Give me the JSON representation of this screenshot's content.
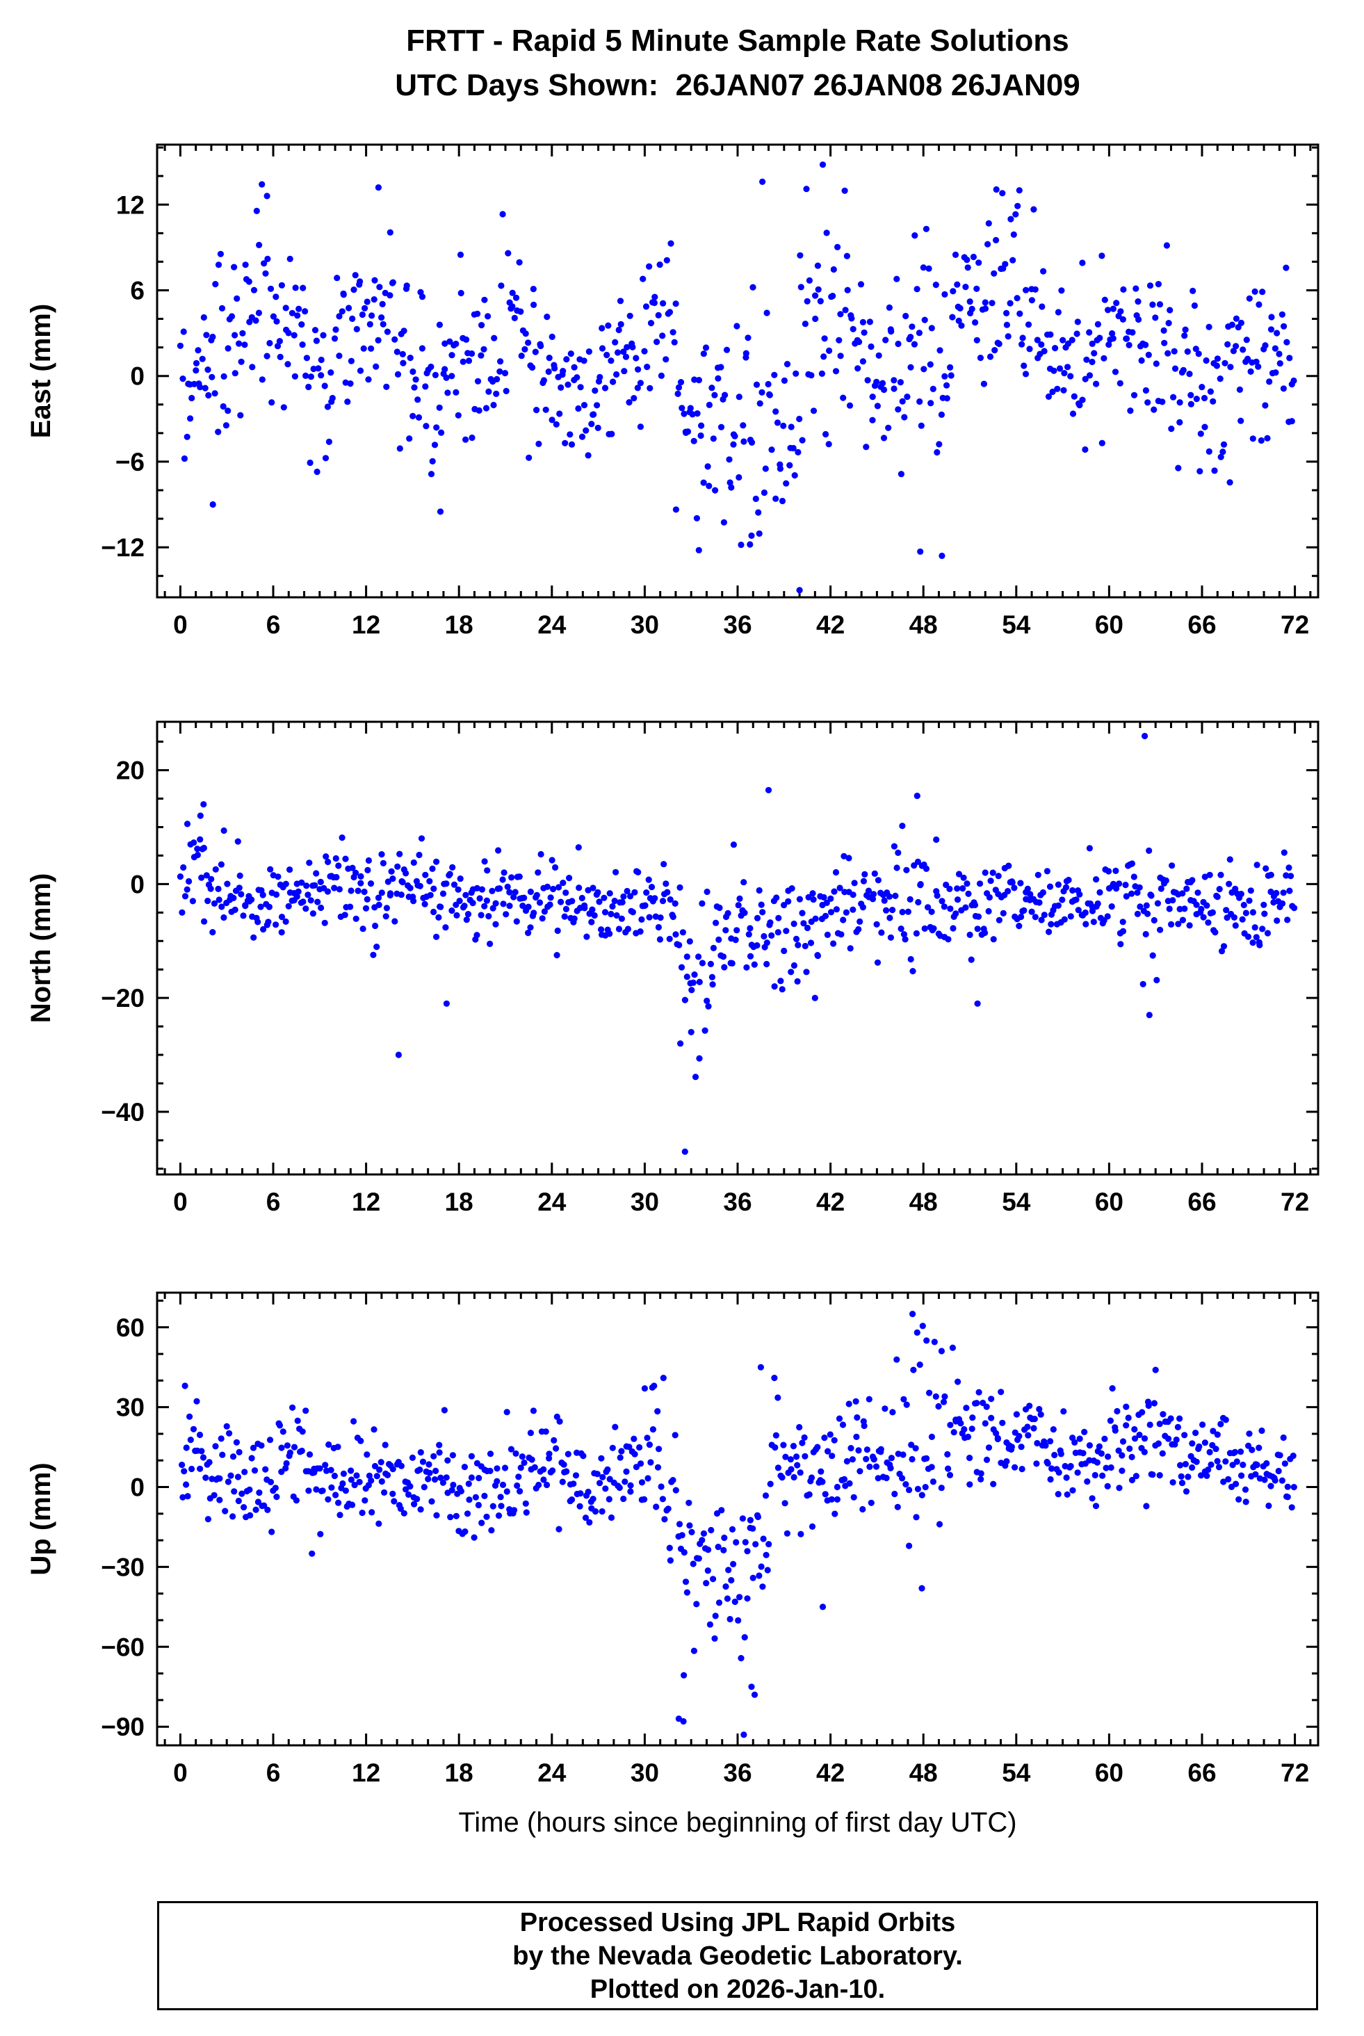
{
  "page": {
    "title_line1": "FRTT - Rapid 5 Minute Sample Rate Solutions",
    "title_line2": "UTC Days Shown:  26JAN07 26JAN08 26JAN09",
    "footer": {
      "line1": "Processed Using JPL Rapid Orbits",
      "line2": "by the Nevada Geodetic Laboratory.",
      "line3": "Plotted on 2026-Jan-10."
    }
  },
  "chart_data": {
    "type": "scatter",
    "title": "FRTT - Rapid 5 Minute Sample Rate Solutions",
    "subtitle": "UTC Days Shown:  26JAN07 26JAN08 26JAN09",
    "xlabel": "Time (hours since beginning of first day UTC)",
    "point_color": "#0000ff",
    "grid": false,
    "legend": "none",
    "x": {
      "lim": [
        -1.5,
        73.5
      ],
      "tick_values": [
        0,
        6,
        12,
        18,
        24,
        30,
        36,
        42,
        48,
        54,
        60,
        66,
        72
      ],
      "tick_labels": [
        "0",
        "6",
        "12",
        "18",
        "24",
        "30",
        "36",
        "42",
        "48",
        "54",
        "60",
        "66",
        "72"
      ],
      "minor_step": 1
    },
    "panels": [
      {
        "name": "east",
        "ylabel": "East (mm)",
        "ylim": [
          -15.5,
          16.2
        ],
        "tick_values": [
          -12,
          -6,
          0,
          6,
          12
        ],
        "tick_labels": [
          "−12",
          "−6",
          "0",
          "6",
          "12"
        ],
        "minor_step": 2,
        "seed": 101,
        "segments": [
          [
            0,
            2,
            22,
            0.5,
            2.8
          ],
          [
            2,
            4,
            22,
            1.5,
            3.5
          ],
          [
            4,
            6,
            22,
            5.5,
            3.2
          ],
          [
            6,
            8,
            22,
            4.0,
            2.8
          ],
          [
            8,
            10,
            22,
            1.0,
            3.2
          ],
          [
            10,
            12,
            22,
            3.0,
            2.8
          ],
          [
            12,
            14,
            22,
            3.5,
            3.0
          ],
          [
            14,
            16,
            22,
            0.5,
            3.0
          ],
          [
            16,
            18,
            22,
            -1.0,
            3.5
          ],
          [
            18,
            20,
            22,
            1.5,
            3.0
          ],
          [
            20,
            22,
            22,
            3.0,
            3.5
          ],
          [
            22,
            24,
            22,
            1.0,
            3.0
          ],
          [
            24,
            26,
            22,
            -0.5,
            2.6
          ],
          [
            26,
            28,
            22,
            -1.0,
            2.6
          ],
          [
            28,
            30,
            22,
            1.5,
            3.0
          ],
          [
            30,
            32,
            22,
            4.0,
            3.0
          ],
          [
            32,
            34,
            22,
            -1.5,
            3.5
          ],
          [
            34,
            36,
            22,
            -3.0,
            3.5
          ],
          [
            36,
            38,
            22,
            -3.5,
            3.8
          ],
          [
            38,
            40,
            22,
            -5.0,
            3.0
          ],
          [
            40,
            42,
            22,
            3.0,
            4.5
          ],
          [
            42,
            44,
            22,
            4.0,
            3.2
          ],
          [
            44,
            46,
            22,
            2.0,
            3.5
          ],
          [
            46,
            48,
            22,
            3.0,
            4.0
          ],
          [
            48,
            50,
            22,
            2.0,
            4.2
          ],
          [
            50,
            52,
            22,
            4.5,
            3.0
          ],
          [
            52,
            54,
            22,
            6.5,
            3.2
          ],
          [
            54,
            56,
            22,
            4.0,
            3.0
          ],
          [
            56,
            58,
            22,
            0.5,
            2.8
          ],
          [
            58,
            60,
            22,
            2.0,
            3.0
          ],
          [
            60,
            62,
            22,
            3.0,
            3.0
          ],
          [
            62,
            64,
            22,
            2.5,
            3.2
          ],
          [
            64,
            66,
            22,
            0.5,
            3.0
          ],
          [
            66,
            68,
            22,
            -0.5,
            3.0
          ],
          [
            68,
            70,
            22,
            1.5,
            3.0
          ],
          [
            70,
            72,
            22,
            1.5,
            2.8
          ]
        ],
        "outliers": [
          [
            40.0,
            -15.0
          ],
          [
            41.5,
            14.8
          ],
          [
            33.5,
            -12.2
          ],
          [
            36.8,
            -11.8
          ],
          [
            47.8,
            -12.3
          ],
          [
            49.2,
            -12.6
          ],
          [
            12.8,
            13.2
          ],
          [
            5.6,
            12.6
          ],
          [
            37.6,
            13.6
          ],
          [
            54.2,
            13.0
          ],
          [
            53.1,
            12.8
          ],
          [
            16.8,
            -9.5
          ],
          [
            2.1,
            -9.0
          ]
        ]
      },
      {
        "name": "north",
        "ylabel": "North (mm)",
        "ylim": [
          -51.0,
          28.5
        ],
        "tick_values": [
          -40,
          -20,
          0,
          20
        ],
        "tick_labels": [
          "−40",
          "−20",
          "0",
          "20"
        ],
        "minor_step": 5,
        "seed": 202,
        "segments": [
          [
            0,
            2,
            22,
            1.0,
            4.5
          ],
          [
            2,
            4,
            22,
            -2.0,
            3.5
          ],
          [
            4,
            6,
            22,
            -3.0,
            2.8
          ],
          [
            6,
            8,
            22,
            -2.5,
            3.0
          ],
          [
            8,
            10,
            22,
            -1.0,
            3.5
          ],
          [
            10,
            12,
            22,
            0.5,
            4.0
          ],
          [
            12,
            14,
            22,
            -2.0,
            4.5
          ],
          [
            14,
            16,
            22,
            1.0,
            3.5
          ],
          [
            16,
            18,
            22,
            -2.5,
            3.8
          ],
          [
            18,
            20,
            22,
            -2.5,
            3.0
          ],
          [
            20,
            22,
            22,
            -2.0,
            3.0
          ],
          [
            22,
            24,
            22,
            -3.0,
            3.0
          ],
          [
            24,
            26,
            22,
            -2.5,
            3.2
          ],
          [
            26,
            28,
            22,
            -4.0,
            3.0
          ],
          [
            28,
            30,
            22,
            -3.5,
            3.0
          ],
          [
            30,
            32,
            22,
            -3.0,
            3.5
          ],
          [
            32,
            34,
            22,
            -13.0,
            7.5
          ],
          [
            34,
            36,
            22,
            -9.0,
            6.0
          ],
          [
            36,
            38,
            22,
            -6.5,
            5.0
          ],
          [
            38,
            40,
            22,
            -7.0,
            5.0
          ],
          [
            40,
            42,
            22,
            -6.0,
            4.5
          ],
          [
            42,
            44,
            22,
            -4.0,
            4.0
          ],
          [
            44,
            46,
            22,
            -3.0,
            4.0
          ],
          [
            46,
            48,
            22,
            -2.0,
            5.0
          ],
          [
            48,
            50,
            22,
            -3.5,
            5.0
          ],
          [
            50,
            52,
            22,
            -3.0,
            4.5
          ],
          [
            52,
            54,
            22,
            -2.0,
            4.0
          ],
          [
            54,
            56,
            22,
            -3.0,
            3.5
          ],
          [
            56,
            58,
            22,
            -2.0,
            4.0
          ],
          [
            58,
            60,
            22,
            -3.0,
            3.5
          ],
          [
            60,
            62,
            22,
            -2.5,
            4.0
          ],
          [
            62,
            64,
            22,
            -3.0,
            5.5
          ],
          [
            64,
            66,
            22,
            -3.0,
            3.0
          ],
          [
            66,
            68,
            22,
            -4.0,
            3.5
          ],
          [
            68,
            70,
            22,
            -6.0,
            4.0
          ],
          [
            70,
            72,
            22,
            -2.0,
            4.0
          ]
        ],
        "outliers": [
          [
            14.1,
            -30.0
          ],
          [
            32.6,
            -47.0
          ],
          [
            32.3,
            -28.0
          ],
          [
            33.0,
            -26.0
          ],
          [
            38.0,
            16.5
          ],
          [
            47.6,
            15.5
          ],
          [
            62.3,
            26.0
          ],
          [
            62.6,
            -23.0
          ],
          [
            1.5,
            14.0
          ],
          [
            1.3,
            12.0
          ],
          [
            17.2,
            -21.0
          ],
          [
            51.5,
            -21.0
          ],
          [
            41.0,
            -20.0
          ]
        ]
      },
      {
        "name": "up",
        "ylabel": "Up (mm)",
        "ylim": [
          -97.0,
          73.0
        ],
        "tick_values": [
          -90,
          -60,
          -30,
          0,
          30,
          60
        ],
        "tick_labels": [
          "−90",
          "−60",
          "−30",
          "0",
          "30",
          "60"
        ],
        "minor_step": 10,
        "seed": 303,
        "segments": [
          [
            0,
            2,
            22,
            8,
            10
          ],
          [
            2,
            4,
            22,
            2,
            9
          ],
          [
            4,
            6,
            22,
            5,
            9
          ],
          [
            6,
            8,
            22,
            8,
            9
          ],
          [
            8,
            10,
            22,
            4,
            10
          ],
          [
            10,
            12,
            22,
            2,
            9
          ],
          [
            12,
            14,
            22,
            4,
            9
          ],
          [
            14,
            16,
            22,
            1,
            9
          ],
          [
            16,
            18,
            22,
            3,
            10
          ],
          [
            18,
            20,
            22,
            -2,
            9
          ],
          [
            20,
            22,
            22,
            2,
            9
          ],
          [
            22,
            24,
            22,
            7,
            9
          ],
          [
            24,
            26,
            22,
            8,
            9
          ],
          [
            26,
            28,
            22,
            3,
            9
          ],
          [
            28,
            30,
            22,
            8,
            9
          ],
          [
            30,
            32,
            22,
            8,
            14
          ],
          [
            32,
            34,
            22,
            -28,
            15
          ],
          [
            34,
            36,
            22,
            -30,
            15
          ],
          [
            36,
            38,
            22,
            -30,
            22
          ],
          [
            38,
            40,
            22,
            8,
            14
          ],
          [
            40,
            42,
            22,
            5,
            13
          ],
          [
            42,
            44,
            22,
            14,
            10
          ],
          [
            44,
            46,
            22,
            10,
            9
          ],
          [
            46,
            48,
            22,
            14,
            20
          ],
          [
            48,
            50,
            22,
            18,
            15
          ],
          [
            50,
            52,
            22,
            18,
            9
          ],
          [
            52,
            54,
            22,
            15,
            9
          ],
          [
            54,
            56,
            22,
            17,
            8
          ],
          [
            56,
            58,
            22,
            10,
            8
          ],
          [
            58,
            60,
            22,
            12,
            8
          ],
          [
            60,
            62,
            22,
            17,
            8
          ],
          [
            62,
            64,
            22,
            19,
            10
          ],
          [
            64,
            66,
            22,
            12,
            8
          ],
          [
            66,
            68,
            22,
            10,
            8
          ],
          [
            68,
            70,
            22,
            8,
            7
          ],
          [
            70,
            72,
            22,
            5,
            7
          ]
        ],
        "outliers": [
          [
            0.3,
            38.0
          ],
          [
            30.6,
            38.0
          ],
          [
            32.2,
            -87.0
          ],
          [
            32.5,
            -88.0
          ],
          [
            36.4,
            -93.0
          ],
          [
            36.9,
            -75.0
          ],
          [
            37.1,
            -78.0
          ],
          [
            37.5,
            45.0
          ],
          [
            47.3,
            65.0
          ],
          [
            47.6,
            58.0
          ],
          [
            47.9,
            -38.0
          ],
          [
            48.2,
            55.0
          ],
          [
            63.0,
            44.0
          ],
          [
            41.5,
            -45.0
          ],
          [
            8.5,
            -25.0
          ],
          [
            44.5,
            33.0
          ]
        ]
      }
    ]
  }
}
